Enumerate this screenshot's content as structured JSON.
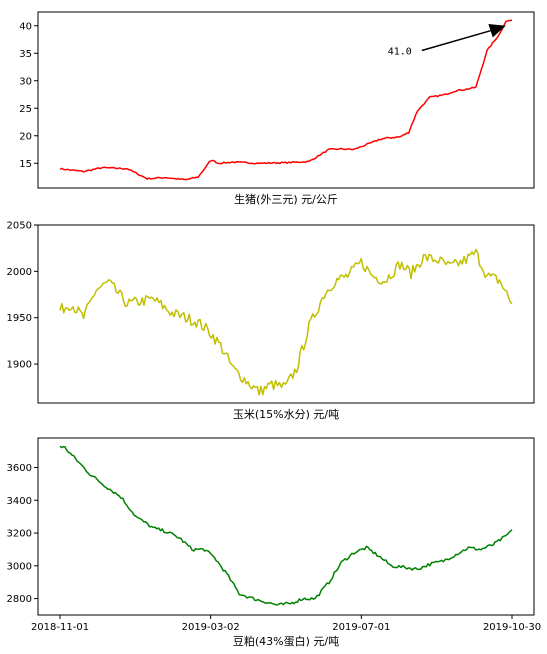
{
  "chart_data": [
    {
      "type": "line",
      "xlabel": "生猪(外三元) 元/公斤",
      "ylabel": "",
      "ylim": [
        10.5,
        42.5
      ],
      "yticks": [
        15,
        20,
        25,
        30,
        35,
        40
      ],
      "color": "#ff0000",
      "x_dates": [
        "2018-11-01",
        "2018-11-20",
        "2018-12-05",
        "2018-12-25",
        "2019-01-10",
        "2019-01-25",
        "2019-02-01",
        "2019-02-10",
        "2019-02-20",
        "2019-03-01",
        "2019-03-03",
        "2019-03-08",
        "2019-03-20",
        "2019-04-10",
        "2019-05-01",
        "2019-05-20",
        "2019-06-05",
        "2019-06-15",
        "2019-06-25",
        "2019-07-10",
        "2019-07-15",
        "2019-07-22",
        "2019-08-01",
        "2019-08-08",
        "2019-08-15",
        "2019-08-25",
        "2019-09-05",
        "2019-09-15",
        "2019-09-22",
        "2019-10-01",
        "2019-10-10",
        "2019-10-20",
        "2019-10-25",
        "2019-10-30"
      ],
      "values": [
        14.0,
        13.5,
        14.2,
        14.0,
        12.2,
        12.4,
        12.2,
        12.0,
        12.5,
        15.2,
        15.6,
        15.0,
        15.2,
        15.0,
        15.1,
        15.3,
        17.5,
        17.6,
        17.5,
        18.8,
        19.3,
        19.6,
        19.8,
        20.6,
        24.5,
        27.0,
        27.4,
        28.2,
        28.4,
        28.8,
        35.5,
        38.5,
        40.8,
        41.0
      ],
      "annotations": [
        {
          "text": "41.0",
          "text_x": "2019-08-25",
          "text_y": 35.5,
          "arrow_to_x": "2019-10-25",
          "arrow_to_y": 40.0
        }
      ]
    },
    {
      "type": "line",
      "xlabel": "玉米(15%水分) 元/吨",
      "ylabel": "",
      "ylim": [
        1858,
        2050
      ],
      "yticks": [
        1900,
        1950,
        2000,
        2050
      ],
      "color": "#bfbf00",
      "x_dates": [
        "2018-11-01",
        "2018-11-10",
        "2018-11-20",
        "2018-11-30",
        "2018-12-10",
        "2018-12-25",
        "2019-01-15",
        "2019-01-30",
        "2019-02-10",
        "2019-02-20",
        "2019-03-01",
        "2019-03-10",
        "2019-03-20",
        "2019-04-01",
        "2019-04-10",
        "2019-04-20",
        "2019-05-01",
        "2019-05-10",
        "2019-05-20",
        "2019-06-01",
        "2019-06-10",
        "2019-06-20",
        "2019-07-01",
        "2019-07-10",
        "2019-07-20",
        "2019-08-01",
        "2019-08-10",
        "2019-08-20",
        "2019-09-01",
        "2019-09-10",
        "2019-09-20",
        "2019-10-01",
        "2019-10-10",
        "2019-10-20",
        "2019-10-30"
      ],
      "values": [
        1958,
        1965,
        1950,
        1980,
        1988,
        1965,
        1970,
        1955,
        1950,
        1945,
        1935,
        1920,
        1895,
        1880,
        1870,
        1878,
        1875,
        1895,
        1940,
        1975,
        1990,
        1995,
        2010,
        1995,
        1990,
        2008,
        1998,
        2015,
        2012,
        2005,
        2010,
        2020,
        1995,
        1990,
        1965
      ],
      "noise": 6
    },
    {
      "type": "line",
      "xlabel": "豆粕(43%蛋白) 元/吨",
      "ylabel": "",
      "ylim": [
        2700,
        3780
      ],
      "yticks": [
        2800,
        3000,
        3200,
        3400,
        3600
      ],
      "xticks": [
        "2018-11-01",
        "2019-03-02",
        "2019-07-01",
        "2019-10-30"
      ],
      "color": "#008000",
      "x_dates": [
        "2018-11-01",
        "2018-11-05",
        "2018-11-15",
        "2018-11-25",
        "2018-12-05",
        "2018-12-20",
        "2019-01-01",
        "2019-01-15",
        "2019-01-25",
        "2019-02-05",
        "2019-02-15",
        "2019-02-25",
        "2019-03-05",
        "2019-03-15",
        "2019-03-25",
        "2019-04-05",
        "2019-04-15",
        "2019-04-25",
        "2019-05-05",
        "2019-05-15",
        "2019-05-25",
        "2019-06-05",
        "2019-06-15",
        "2019-06-25",
        "2019-07-05",
        "2019-07-15",
        "2019-07-25",
        "2019-08-05",
        "2019-08-15",
        "2019-08-25",
        "2019-09-05",
        "2019-09-15",
        "2019-09-25",
        "2019-10-05",
        "2019-10-15",
        "2019-10-25",
        "2019-10-30"
      ],
      "values": [
        3730,
        3720,
        3640,
        3560,
        3500,
        3420,
        3300,
        3230,
        3210,
        3170,
        3100,
        3100,
        3050,
        2950,
        2830,
        2800,
        2780,
        2760,
        2770,
        2800,
        2800,
        2900,
        3020,
        3080,
        3110,
        3060,
        3000,
        2990,
        2980,
        3010,
        3030,
        3070,
        3110,
        3100,
        3130,
        3180,
        3220
      ],
      "noise": 10
    }
  ]
}
